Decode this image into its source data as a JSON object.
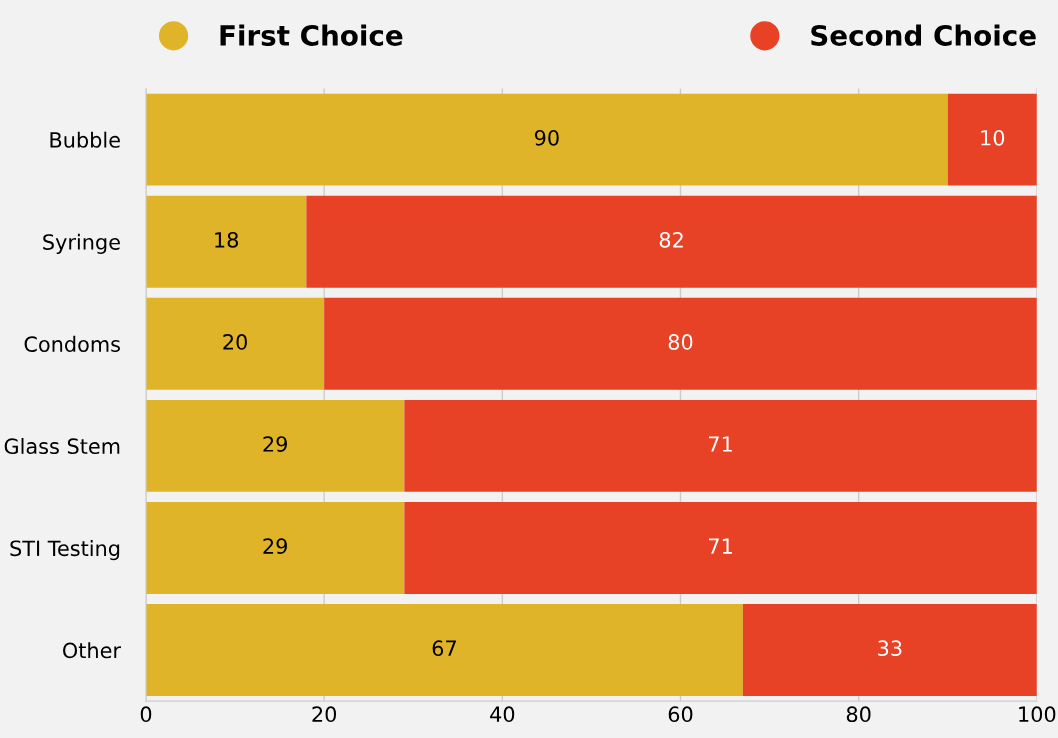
{
  "chart_data": {
    "type": "bar",
    "orientation": "horizontal",
    "stacked": true,
    "categories": [
      "Bubble",
      "Syringe",
      "Condoms",
      "Glass Stem",
      "STI Testing",
      "Other"
    ],
    "series": [
      {
        "name": "First Choice",
        "color": "#e0b428",
        "values": [
          90,
          18,
          20,
          29,
          29,
          67
        ]
      },
      {
        "name": "Second Choice",
        "color": "#e84226",
        "values": [
          10,
          82,
          80,
          71,
          71,
          33
        ]
      }
    ],
    "xlim": [
      0,
      100
    ],
    "xticks": [
      0,
      20,
      40,
      60,
      80,
      100
    ],
    "grid": "x",
    "legend": "top",
    "data_labels": true
  }
}
